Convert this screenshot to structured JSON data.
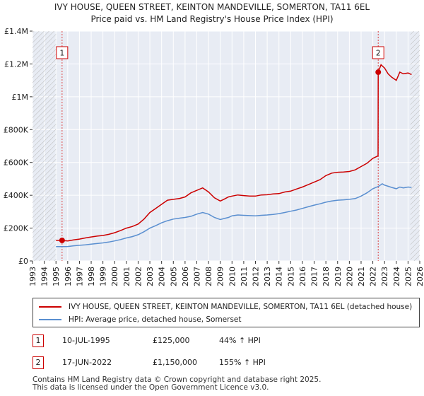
{
  "chart_data": {
    "type": "line",
    "title": "IVY HOUSE, QUEEN STREET, KEINTON MANDEVILLE, SOMERTON, TA11 6EL",
    "subtitle": "Price paid vs. HM Land Registry's House Price Index (HPI)",
    "xlim": [
      1993,
      2026
    ],
    "ylim": [
      0,
      1400000
    ],
    "xticks": [
      "1993",
      "1994",
      "1995",
      "1996",
      "1997",
      "1998",
      "1999",
      "2000",
      "2001",
      "2002",
      "2003",
      "2004",
      "2005",
      "2006",
      "2007",
      "2008",
      "2009",
      "2010",
      "2011",
      "2012",
      "2013",
      "2014",
      "2015",
      "2016",
      "2017",
      "2018",
      "2019",
      "2020",
      "2021",
      "2022",
      "2023",
      "2024",
      "2025",
      "2026"
    ],
    "yticks": [
      {
        "value": 0,
        "label": "£0"
      },
      {
        "value": 200000,
        "label": "£200K"
      },
      {
        "value": 400000,
        "label": "£400K"
      },
      {
        "value": 600000,
        "label": "£600K"
      },
      {
        "value": 800000,
        "label": "£800K"
      },
      {
        "value": 1000000,
        "label": "£1M"
      },
      {
        "value": 1200000,
        "label": "£1.2M"
      },
      {
        "value": 1400000,
        "label": "£1.4M"
      }
    ],
    "hatch_before": 1995,
    "hatch_after": 2025.2,
    "series": [
      {
        "name": "IVY HOUSE, QUEEN STREET, KEINTON MANDEVILLE, SOMERTON, TA11 6EL (detached house)",
        "color": "#cc0000",
        "x": [
          1995.0,
          1995.52,
          1996.0,
          1996.5,
          1997.0,
          1997.5,
          1998.0,
          1998.5,
          1999.0,
          1999.5,
          2000.0,
          2000.5,
          2001.0,
          2001.5,
          2002.0,
          2002.5,
          2003.0,
          2003.5,
          2004.0,
          2004.5,
          2005.0,
          2005.5,
          2006.0,
          2006.5,
          2007.0,
          2007.5,
          2008.0,
          2008.5,
          2009.0,
          2009.3,
          2009.7,
          2010.0,
          2010.5,
          2011.0,
          2011.5,
          2012.0,
          2012.5,
          2013.0,
          2013.5,
          2014.0,
          2014.5,
          2015.0,
          2015.5,
          2016.0,
          2016.5,
          2017.0,
          2017.5,
          2018.0,
          2018.5,
          2019.0,
          2019.5,
          2020.0,
          2020.5,
          2021.0,
          2021.5,
          2022.0,
          2022.45,
          2022.46,
          2022.7,
          2023.0,
          2023.3,
          2023.6,
          2024.0,
          2024.3,
          2024.6,
          2025.0,
          2025.3
        ],
        "values": [
          125000,
          125000,
          122000,
          128000,
          133000,
          140000,
          146000,
          151000,
          155000,
          162000,
          172000,
          185000,
          200000,
          210000,
          225000,
          255000,
          295000,
          320000,
          345000,
          370000,
          375000,
          380000,
          390000,
          415000,
          430000,
          445000,
          420000,
          385000,
          365000,
          375000,
          390000,
          395000,
          402000,
          398000,
          395000,
          395000,
          402000,
          403000,
          408000,
          410000,
          420000,
          425000,
          438000,
          450000,
          465000,
          480000,
          495000,
          520000,
          535000,
          540000,
          542000,
          545000,
          555000,
          575000,
          595000,
          625000,
          640000,
          1150000,
          1195000,
          1175000,
          1140000,
          1120000,
          1100000,
          1150000,
          1140000,
          1145000,
          1135000
        ]
      },
      {
        "name": "HPI: Average price, detached house, Somerset",
        "color": "#5a8fd0",
        "x": [
          1995.0,
          1995.5,
          1996.0,
          1996.5,
          1997.0,
          1997.5,
          1998.0,
          1998.5,
          1999.0,
          1999.5,
          2000.0,
          2000.5,
          2001.0,
          2001.5,
          2002.0,
          2002.5,
          2003.0,
          2003.5,
          2004.0,
          2004.5,
          2005.0,
          2005.5,
          2006.0,
          2006.5,
          2007.0,
          2007.5,
          2008.0,
          2008.5,
          2009.0,
          2009.3,
          2009.7,
          2010.0,
          2010.5,
          2011.0,
          2011.5,
          2012.0,
          2012.5,
          2013.0,
          2013.5,
          2014.0,
          2014.5,
          2015.0,
          2015.5,
          2016.0,
          2016.5,
          2017.0,
          2017.5,
          2018.0,
          2018.5,
          2019.0,
          2019.5,
          2020.0,
          2020.5,
          2021.0,
          2021.5,
          2022.0,
          2022.5,
          2022.8,
          2023.0,
          2023.3,
          2023.6,
          2024.0,
          2024.3,
          2024.6,
          2025.0,
          2025.3
        ],
        "values": [
          87000,
          87000,
          88000,
          92000,
          95000,
          98000,
          102000,
          106000,
          110000,
          115000,
          122000,
          130000,
          140000,
          148000,
          160000,
          178000,
          200000,
          215000,
          232000,
          245000,
          255000,
          260000,
          265000,
          272000,
          285000,
          295000,
          285000,
          265000,
          252000,
          258000,
          265000,
          275000,
          280000,
          278000,
          276000,
          275000,
          278000,
          280000,
          283000,
          288000,
          295000,
          303000,
          310000,
          320000,
          330000,
          340000,
          348000,
          358000,
          365000,
          370000,
          372000,
          375000,
          380000,
          395000,
          415000,
          440000,
          455000,
          470000,
          462000,
          455000,
          448000,
          440000,
          450000,
          445000,
          450000,
          448000
        ]
      }
    ],
    "sales": [
      {
        "label": "1",
        "x": 1995.52,
        "value": 125000
      },
      {
        "label": "2",
        "x": 2022.46,
        "value": 1150000
      }
    ]
  },
  "legend": {
    "property_label": "IVY HOUSE, QUEEN STREET, KEINTON MANDEVILLE, SOMERTON, TA11 6EL (detached house)",
    "hpi_label": "HPI: Average price, detached house, Somerset"
  },
  "transactions": [
    {
      "num": "1",
      "date": "10-JUL-1995",
      "price": "£125,000",
      "hpi": "44% ↑ HPI"
    },
    {
      "num": "2",
      "date": "17-JUN-2022",
      "price": "£1,150,000",
      "hpi": "155% ↑ HPI"
    }
  ],
  "footer": {
    "line1": "Contains HM Land Registry data © Crown copyright and database right 2025.",
    "line2": "This data is licensed under the Open Government Licence v3.0."
  }
}
